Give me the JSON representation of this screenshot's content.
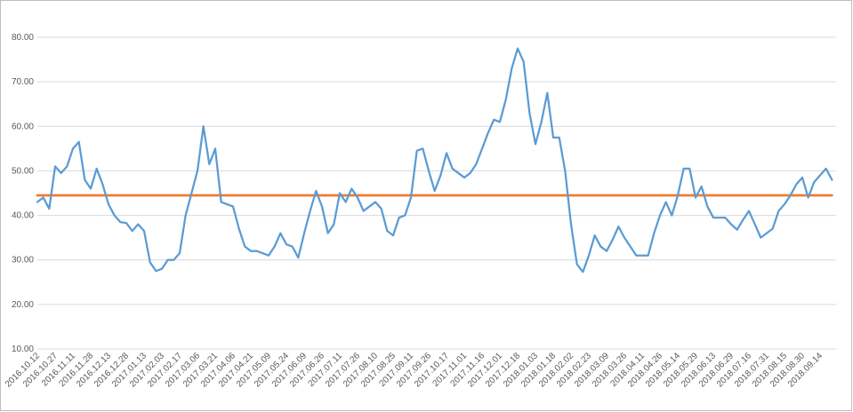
{
  "chart_data": {
    "type": "line",
    "categories": [
      "2016.10.12",
      null,
      null,
      "2016.10.27",
      null,
      null,
      "2016.11.11",
      null,
      null,
      "2016.11.28",
      null,
      null,
      "2016.12.13",
      null,
      null,
      "2016.12.28",
      null,
      null,
      "2017.01.13",
      null,
      null,
      "2017.02.03",
      null,
      null,
      "2017.02.17",
      null,
      null,
      "2017.03.06",
      null,
      null,
      "2017.03.21",
      null,
      null,
      "2017.04.06",
      null,
      null,
      "2017.04.21",
      null,
      null,
      "2017.05.09",
      null,
      null,
      "2017.05.24",
      null,
      null,
      "2017.06.09",
      null,
      null,
      "2017.06.26",
      null,
      null,
      "2017.07.11",
      null,
      null,
      "2017.07.26",
      null,
      null,
      "2017.08.10",
      null,
      null,
      "2017.08.25",
      null,
      null,
      "2017.09.11",
      null,
      null,
      "2017.09.26",
      null,
      null,
      "2017.10.17",
      null,
      null,
      "2017.11.01",
      null,
      null,
      "2017.11.16",
      null,
      null,
      "2017.12.01",
      null,
      null,
      "2017.12.18",
      null,
      null,
      "2018.01.03",
      null,
      null,
      "2018.01.18",
      null,
      null,
      "2018.02.02",
      null,
      null,
      "2018.02.23",
      null,
      null,
      "2018.03.09",
      null,
      null,
      "2018.03.26",
      null,
      null,
      "2018.04.11",
      null,
      null,
      "2018.04.26",
      null,
      null,
      "2018.05.14",
      null,
      null,
      "2018.05.29",
      null,
      null,
      "2018.06.13",
      null,
      null,
      "2018.06.29",
      null,
      null,
      "2018.07.16",
      null,
      null,
      "2018.07.31",
      null,
      null,
      "2018.08.15",
      null,
      null,
      "2018.08.30",
      null,
      null,
      "2018.09.14",
      null,
      null
    ],
    "series": [
      {
        "color": "#5b9bd5",
        "values": [
          43,
          44,
          41.5,
          51,
          49.5,
          51,
          55,
          56.5,
          48,
          46,
          50.5,
          47,
          42.5,
          40,
          38.5,
          38.3,
          36.5,
          38,
          36.5,
          29.5,
          27.5,
          28,
          30,
          30,
          31.5,
          40,
          45,
          50,
          60,
          51.5,
          55,
          43,
          42.5,
          42,
          37,
          33,
          32,
          32,
          31.5,
          31,
          33,
          36,
          33.5,
          33,
          30.5,
          36,
          41,
          45.5,
          42,
          36,
          38,
          45,
          43,
          46,
          44,
          41,
          42,
          43,
          41.5,
          36.5,
          35.5,
          39.5,
          40,
          44,
          54.5,
          55,
          50,
          45.5,
          49,
          54,
          50.5,
          49.5,
          48.5,
          49.5,
          51.5,
          55,
          58.5,
          61.5,
          61,
          66,
          73,
          77.5,
          74.5,
          63,
          56,
          61,
          67.5,
          57.5,
          57.5,
          50,
          38,
          29,
          27.3,
          31,
          35.5,
          33,
          32,
          34.5,
          37.5,
          35,
          33,
          31,
          31,
          31,
          36,
          40,
          43,
          40,
          44.5,
          50.5,
          50.5,
          44,
          46.5,
          42,
          39.5,
          39.5,
          39.5,
          38,
          36.8,
          39,
          41,
          38,
          35,
          36,
          37,
          41,
          42.5,
          44.5,
          47,
          48.5,
          44,
          47.5,
          49,
          50.5,
          48
        ]
      },
      {
        "color": "#ed7d31",
        "values": [
          44.5,
          44.5,
          44.5,
          44.5,
          44.5,
          44.5,
          44.5,
          44.5,
          44.5,
          44.5,
          44.5,
          44.5,
          44.5,
          44.5,
          44.5,
          44.5,
          44.5,
          44.5,
          44.5,
          44.5,
          44.5,
          44.5,
          44.5,
          44.5,
          44.5,
          44.5,
          44.5,
          44.5,
          44.5,
          44.5,
          44.5,
          44.5,
          44.5,
          44.5,
          44.5,
          44.5,
          44.5,
          44.5,
          44.5,
          44.5,
          44.5,
          44.5,
          44.5,
          44.5,
          44.5,
          44.5,
          44.5,
          44.5,
          44.5,
          44.5,
          44.5,
          44.5,
          44.5,
          44.5,
          44.5,
          44.5,
          44.5,
          44.5,
          44.5,
          44.5,
          44.5,
          44.5,
          44.5,
          44.5,
          44.5,
          44.5,
          44.5,
          44.5,
          44.5,
          44.5,
          44.5,
          44.5,
          44.5,
          44.5,
          44.5,
          44.5,
          44.5,
          44.5,
          44.5,
          44.5,
          44.5,
          44.5,
          44.5,
          44.5,
          44.5,
          44.5,
          44.5,
          44.5,
          44.5,
          44.5,
          44.5,
          44.5,
          44.5,
          44.5,
          44.5,
          44.5,
          44.5,
          44.5,
          44.5,
          44.5,
          44.5,
          44.5,
          44.5,
          44.5,
          44.5,
          44.5,
          44.5,
          44.5,
          44.5,
          44.5,
          44.5,
          44.5,
          44.5,
          44.5,
          44.5,
          44.5,
          44.5,
          44.5,
          44.5,
          44.5,
          44.5,
          44.5,
          44.5,
          44.5,
          44.5,
          44.5,
          44.5,
          44.5,
          44.5,
          44.5,
          44.5,
          44.5,
          44.5,
          44.5,
          44.5
        ]
      }
    ],
    "ylim": [
      10,
      80
    ],
    "yticks": [
      {
        "value": 10,
        "label": "10.00"
      },
      {
        "value": 20,
        "label": "20.00"
      },
      {
        "value": 30,
        "label": "30.00"
      },
      {
        "value": 40,
        "label": "40.00"
      },
      {
        "value": 50,
        "label": "50.00"
      },
      {
        "value": 60,
        "label": "60.00"
      },
      {
        "value": 70,
        "label": "70.00"
      },
      {
        "value": 80,
        "label": "80.00"
      }
    ],
    "grid": true
  }
}
